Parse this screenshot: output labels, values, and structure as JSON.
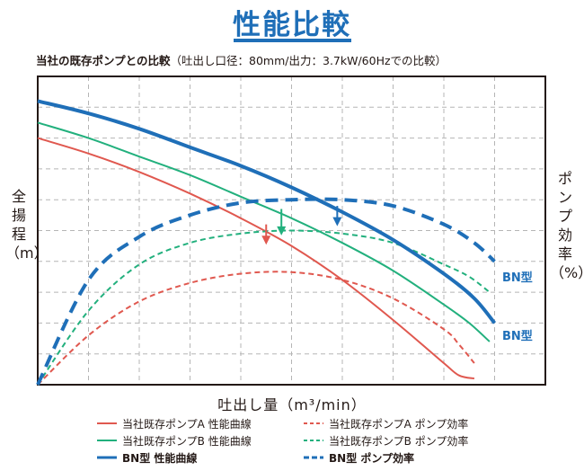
{
  "page": {
    "title": "性能比較",
    "subtitle_bold": "当社の既存ポンプとの比較",
    "subtitle_normal": "（吐出し口径：80mm/出力：3.7kW/60Hzでの比較）"
  },
  "colors": {
    "pump_a": "#e0584f",
    "pump_b": "#22b07d",
    "bn": "#1f6fb8",
    "title": "#1f6fb8",
    "grid": "#b5b5b5"
  },
  "chart_data": {
    "type": "line",
    "title": "性能比較",
    "xlabel": "吐出し量（m³/min）",
    "ylabel_left": "全\n揚\n程\n（m）",
    "ylabel_right": "ポ\nン\nプ\n効\n率\n（%）",
    "tick_labels_shown": false,
    "grid": true,
    "xlim": [
      0,
      10
    ],
    "head_ylim": [
      0,
      10
    ],
    "efficiency_ylim": [
      0,
      10
    ],
    "note": "No numeric tick values printed; values are relative positions in arbitrary units (0–10).",
    "series": [
      {
        "name": "当社既存ポンプA 性能曲線",
        "kind": "head",
        "color": "#e0584f",
        "style": "solid",
        "weight": "thin",
        "x": [
          0,
          1,
          2,
          3,
          4,
          5,
          6,
          7,
          8,
          8.3,
          8.6
        ],
        "y": [
          8.0,
          7.5,
          6.9,
          6.2,
          5.4,
          4.5,
          3.4,
          2.1,
          0.7,
          0.3,
          0.2
        ]
      },
      {
        "name": "当社既存ポンプA ポンプ効率",
        "kind": "efficiency",
        "color": "#e0584f",
        "style": "dashed",
        "weight": "thin",
        "x": [
          0,
          1,
          2,
          3,
          4,
          5,
          6,
          7,
          8,
          8.3,
          8.6
        ],
        "y": [
          0.0,
          1.6,
          2.7,
          3.3,
          3.6,
          3.65,
          3.4,
          2.8,
          1.8,
          1.3,
          0.7
        ]
      },
      {
        "name": "当社既存ポンプB 性能曲線",
        "kind": "head",
        "color": "#22b07d",
        "style": "solid",
        "weight": "thin",
        "x": [
          0,
          1,
          2,
          3,
          4,
          5,
          6,
          7,
          8,
          8.5,
          8.9
        ],
        "y": [
          8.5,
          8.0,
          7.4,
          6.8,
          6.1,
          5.4,
          4.6,
          3.7,
          2.6,
          2.0,
          1.4
        ]
      },
      {
        "name": "当社既存ポンプB ポンプ効率",
        "kind": "efficiency",
        "color": "#22b07d",
        "style": "dashed",
        "weight": "thin",
        "x": [
          0,
          1,
          2,
          3,
          4,
          5,
          6,
          7,
          8,
          8.5,
          8.9
        ],
        "y": [
          0.0,
          2.4,
          3.9,
          4.6,
          4.9,
          5.0,
          4.9,
          4.6,
          3.9,
          3.5,
          3.0
        ]
      },
      {
        "name": "BN型 性能曲線",
        "kind": "head",
        "color": "#1f6fb8",
        "style": "solid",
        "weight": "thick",
        "x": [
          0,
          1,
          2,
          3,
          4,
          5,
          6,
          7,
          8,
          8.6,
          9.0
        ],
        "y": [
          9.2,
          8.8,
          8.3,
          7.7,
          7.1,
          6.4,
          5.6,
          4.7,
          3.6,
          2.8,
          2.0
        ]
      },
      {
        "name": "BN型 ポンプ効率",
        "kind": "efficiency",
        "color": "#1f6fb8",
        "style": "dashed",
        "weight": "thick",
        "x": [
          0,
          1,
          2,
          3,
          4,
          5,
          6,
          7,
          8,
          8.6,
          9.0
        ],
        "y": [
          0.0,
          3.4,
          4.8,
          5.5,
          5.9,
          6.0,
          6.0,
          5.8,
          5.2,
          4.6,
          4.0
        ]
      }
    ],
    "annotations": [
      {
        "text": "BN型",
        "color": "#1f6fb8",
        "x": 9.15,
        "y": 3.5
      },
      {
        "text": "BN型",
        "color": "#1f6fb8",
        "x": 9.15,
        "y": 1.6
      }
    ],
    "arrows": [
      {
        "color": "#e0584f",
        "x": 4.5,
        "y_from": 5.2,
        "y_to": 4.6
      },
      {
        "color": "#22b07d",
        "x": 4.8,
        "y_from": 5.7,
        "y_to": 4.9
      },
      {
        "color": "#1f6fb8",
        "x": 5.9,
        "y_from": 5.8,
        "y_to": 5.2
      }
    ]
  },
  "legend": {
    "items": [
      {
        "label": "当社既存ポンプA 性能曲線",
        "color": "#e0584f",
        "style": "solid",
        "bold": false
      },
      {
        "label": "当社既存ポンプA ポンプ効率",
        "color": "#e0584f",
        "style": "dashed",
        "bold": false
      },
      {
        "label": "当社既存ポンプB 性能曲線",
        "color": "#22b07d",
        "style": "solid",
        "bold": false
      },
      {
        "label": "当社既存ポンプB ポンプ効率",
        "color": "#22b07d",
        "style": "dashed",
        "bold": false
      },
      {
        "label": "BN型 性能曲線",
        "color": "#1f6fb8",
        "style": "solid",
        "bold": true
      },
      {
        "label": "BN型 ポンプ効率",
        "color": "#1f6fb8",
        "style": "dashed",
        "bold": true
      }
    ]
  }
}
